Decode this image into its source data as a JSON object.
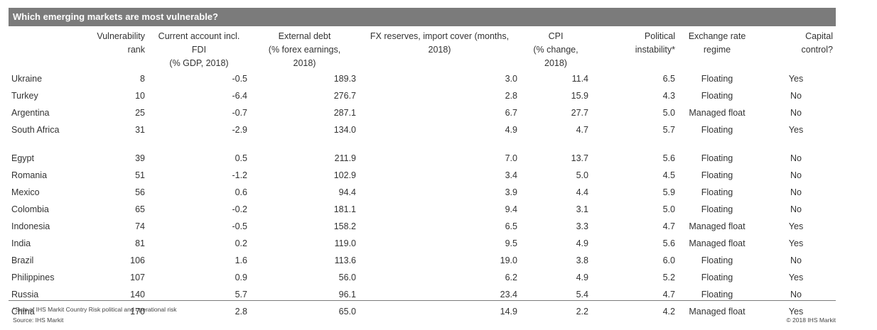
{
  "title": "Which emerging markets are most vulnerable?",
  "headers": [
    {
      "lines": [
        ""
      ]
    },
    {
      "lines": [
        "Vulnerability",
        "rank"
      ]
    },
    {
      "lines": [
        "Current account incl.",
        "FDI",
        "(% GDP, 2018)"
      ]
    },
    {
      "lines": [
        "External debt",
        "(% forex earnings,",
        "2018)"
      ]
    },
    {
      "lines": [
        "FX reserves, import cover (months,",
        "2018)"
      ]
    },
    {
      "lines": [
        "CPI",
        "(% change,",
        "2018)"
      ]
    },
    {
      "lines": [
        "Political",
        "instability*"
      ]
    },
    {
      "lines": [
        "Exchange rate",
        "regime"
      ]
    },
    {
      "lines": [
        "Capital",
        "control?"
      ]
    }
  ],
  "rows": [
    [
      "Ukraine",
      "8",
      "-0.5",
      "189.3",
      "3.0",
      "11.4",
      "6.5",
      "Floating",
      "Yes"
    ],
    [
      "Turkey",
      "10",
      "-6.4",
      "276.7",
      "2.8",
      "15.9",
      "4.3",
      "Floating",
      "No"
    ],
    [
      "Argentina",
      "25",
      "-0.7",
      "287.1",
      "6.7",
      "27.7",
      "5.0",
      "Managed float",
      "No"
    ],
    [
      "South Africa",
      "31",
      "-2.9",
      "134.0",
      "4.9",
      "4.7",
      "5.7",
      "Floating",
      "Yes"
    ],
    [
      "Egypt",
      "39",
      "0.5",
      "211.9",
      "7.0",
      "13.7",
      "5.6",
      "Floating",
      "No"
    ],
    [
      "Romania",
      "51",
      "-1.2",
      "102.9",
      "3.4",
      "5.0",
      "4.5",
      "Floating",
      "No"
    ],
    [
      "Mexico",
      "56",
      "0.6",
      "94.4",
      "3.9",
      "4.4",
      "5.9",
      "Floating",
      "No"
    ],
    [
      "Colombia",
      "65",
      "-0.2",
      "181.1",
      "9.4",
      "3.1",
      "5.0",
      "Floating",
      "No"
    ],
    [
      "Indonesia",
      "74",
      "-0.5",
      "158.2",
      "6.5",
      "3.3",
      "4.7",
      "Managed float",
      "Yes"
    ],
    [
      "India",
      "81",
      "0.2",
      "119.0",
      "9.5",
      "4.9",
      "5.6",
      "Managed float",
      "Yes"
    ],
    [
      "Brazil",
      "106",
      "1.6",
      "113.6",
      "19.0",
      "3.8",
      "6.0",
      "Floating",
      "No"
    ],
    [
      "Philippines",
      "107",
      "0.9",
      "56.0",
      "6.2",
      "4.9",
      "5.2",
      "Floating",
      "Yes"
    ],
    [
      "Russia",
      "140",
      "5.7",
      "96.1",
      "23.4",
      "5.4",
      "4.7",
      "Floating",
      "No"
    ],
    [
      "China",
      "170",
      "2.8",
      "65.0",
      "14.9",
      "2.2",
      "4.2",
      "Managed float",
      "Yes"
    ]
  ],
  "footnotes": {
    "note": "*Sum of IHS Markit Country Risk political and operational risk",
    "source": "Source: IHS Markit",
    "copyright": "© 2018 IHS Markit"
  }
}
